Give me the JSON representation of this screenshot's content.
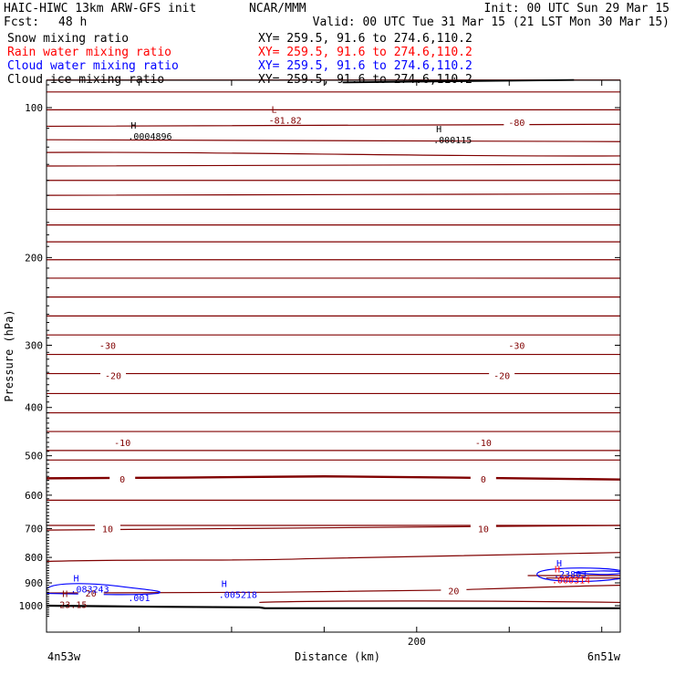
{
  "header": {
    "title": "HAIC-HIWC 13km ARW-GFS init",
    "org": "NCAR/MMM",
    "init": "Init: 00 UTC Sun 29 Mar 15",
    "fcst_label": "Fcst:",
    "fcst_value": "48 h",
    "valid": "Valid: 00 UTC Tue 31 Mar 15 (21 LST Mon 30 Mar 15)",
    "fields": [
      {
        "name": "Snow mixing ratio",
        "xy": "XY= 259.5, 91.6 to 274.6,110.2",
        "color": "#000000"
      },
      {
        "name": "Rain water mixing ratio",
        "xy": "XY= 259.5, 91.6 to 274.6,110.2",
        "color": "#ff0000"
      },
      {
        "name": "Cloud water mixing ratio",
        "xy": "XY= 259.5, 91.6 to 274.6,110.2",
        "color": "#0000ff"
      },
      {
        "name": "Cloud ice mixing ratio",
        "xy": "XY= 259.5, 91.6 to 274.6,110.2",
        "color": "#000000"
      }
    ]
  },
  "chart_data": {
    "type": "contour",
    "xlabel": "Distance (km)",
    "ylabel": "Pressure (hPa)",
    "x_ticks": [
      {
        "value": 0,
        "label": ""
      },
      {
        "value": 50,
        "label": ""
      },
      {
        "value": 100,
        "label": ""
      },
      {
        "value": 150,
        "label": ""
      },
      {
        "value": 200,
        "label": "200"
      },
      {
        "value": 250,
        "label": ""
      },
      {
        "value": 300,
        "label": ""
      }
    ],
    "x_range": [
      0,
      310
    ],
    "y_range_hpa": [
      1050,
      85
    ],
    "y_scale": "log",
    "y_ticks": [
      100,
      200,
      300,
      400,
      500,
      600,
      700,
      800,
      900,
      1000
    ],
    "left_endpoint": "4n53w",
    "right_endpoint": "6n51w",
    "temperature_color": "#800000",
    "temperature_contours_degC": [
      {
        "value": 0,
        "labels": [
          {
            "x": 41,
            "text": "0"
          },
          {
            "x": 236,
            "text": "0"
          }
        ],
        "bold": true
      },
      {
        "value": 10,
        "labels": [
          {
            "x": 33,
            "text": "10"
          },
          {
            "x": 236,
            "text": "10"
          }
        ]
      },
      {
        "value": 20,
        "labels": [
          {
            "x": 24,
            "text": "20"
          },
          {
            "x": 220,
            "text": "20"
          }
        ]
      },
      {
        "value": -10,
        "labels": [
          {
            "x": 41,
            "text": "-10"
          },
          {
            "x": 236,
            "text": "-10"
          }
        ]
      },
      {
        "value": -20,
        "labels": [
          {
            "x": 36,
            "text": "-20"
          },
          {
            "x": 246,
            "text": "-20"
          }
        ]
      },
      {
        "value": -30,
        "labels": [
          {
            "x": 33,
            "text": "-30"
          },
          {
            "x": 254,
            "text": "-30"
          }
        ]
      },
      {
        "value": -80,
        "labels": [
          {
            "x": 254,
            "text": "-80"
          }
        ]
      }
    ],
    "extrema": [
      {
        "type": "H",
        "x": 47,
        "p": 113,
        "value": ".0004896",
        "color": "#000000"
      },
      {
        "type": "L",
        "x": 123,
        "p": 105,
        "value": "-81.82",
        "color": "#800000"
      },
      {
        "type": "H",
        "x": 212,
        "p": 115,
        "value": ".000115",
        "color": "#000000"
      },
      {
        "type": "H",
        "x": 16,
        "p": 918,
        "value": ".083243",
        "color": "#0000ff"
      },
      {
        "type": "H",
        "x": 96,
        "p": 940,
        "value": ".005218",
        "color": "#0000ff"
      },
      {
        "type": "H",
        "x": 277,
        "p": 855,
        "value": ".23803",
        "color": "#0000ff"
      },
      {
        "type": "H",
        "x": 276,
        "p": 880,
        "value": ".000314",
        "color": "#ff0000"
      },
      {
        "type": "H",
        "x": 10,
        "p": 985,
        "value": "23.15",
        "color": "#800000"
      }
    ],
    "cloud_water_labels": [
      {
        "x": 50,
        "p": 962,
        "text": ".001"
      }
    ],
    "cloud_water_color": "#0000ff"
  }
}
